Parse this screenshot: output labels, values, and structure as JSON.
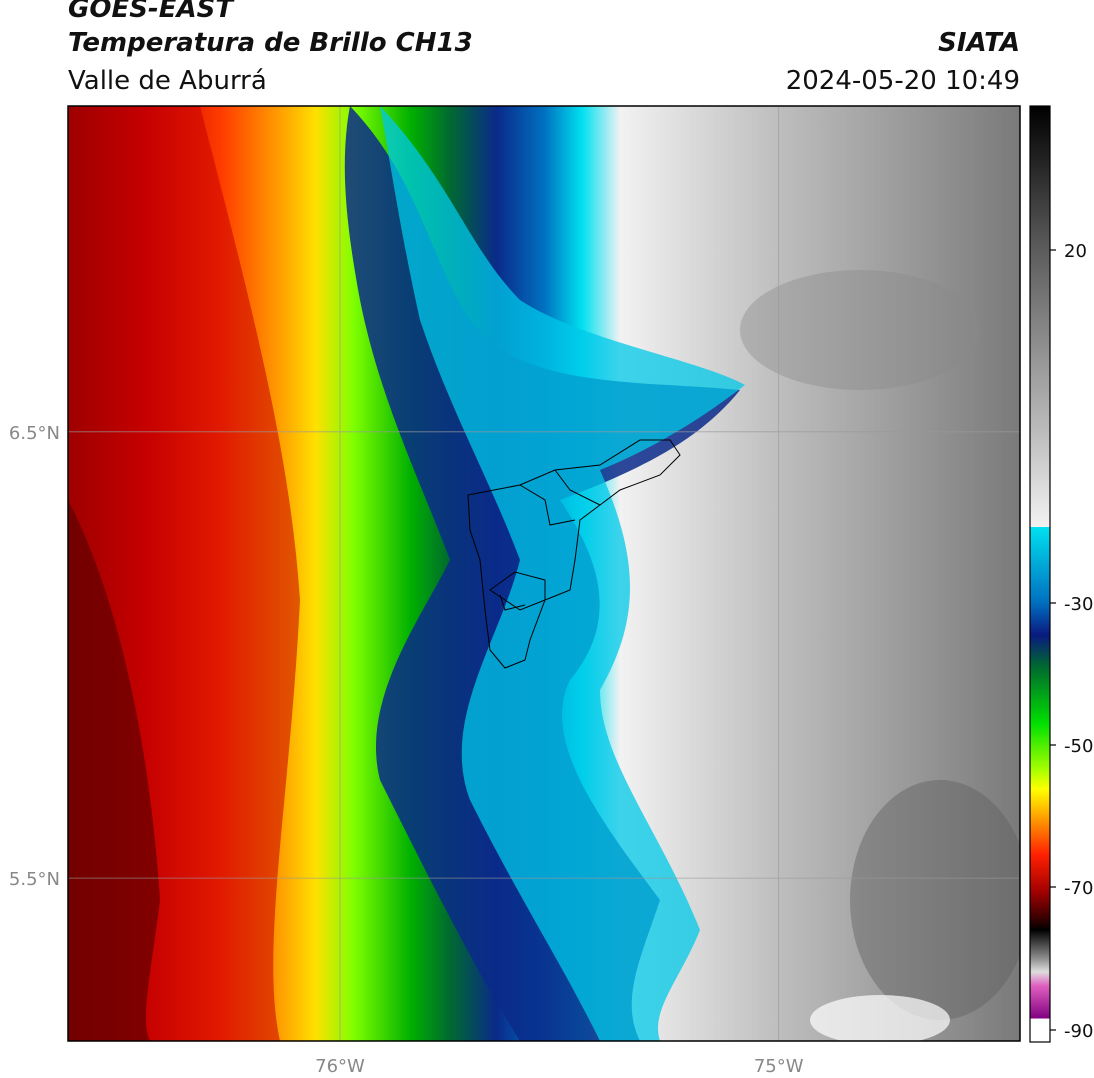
{
  "header": {
    "satellite": "GOES-EAST",
    "product": "Temperatura de Brillo CH13",
    "region": "Valle de Aburrá",
    "organization": "SIATA",
    "timestamp": "2024-05-20 10:49"
  },
  "map": {
    "lat_labels": [
      {
        "value": 6.5,
        "text": "6.5°N"
      },
      {
        "value": 5.5,
        "text": "5.5°N"
      }
    ],
    "lon_labels": [
      {
        "value": -76.0,
        "text": "76°W"
      },
      {
        "value": -75.0,
        "text": "75°W"
      }
    ],
    "lat_range": [
      5.135,
      7.23
    ],
    "lon_range": [
      -76.62,
      -74.45
    ]
  },
  "colorbar": {
    "ticks": [
      {
        "value": 20,
        "text": "20"
      },
      {
        "value": -30,
        "text": "-30"
      },
      {
        "value": -50,
        "text": "-50"
      },
      {
        "value": -70,
        "text": "-70"
      },
      {
        "value": -90,
        "text": "-90"
      }
    ]
  }
}
